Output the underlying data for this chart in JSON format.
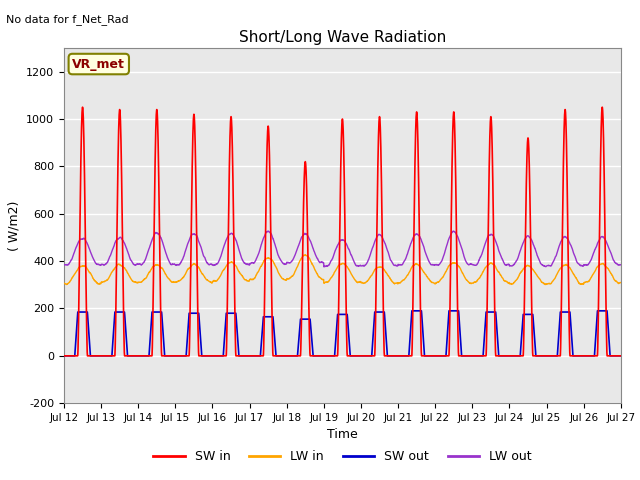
{
  "title": "Short/Long Wave Radiation",
  "xlabel": "Time",
  "ylabel": "( W/m2)",
  "ylim": [
    -200,
    1300
  ],
  "yticks": [
    -200,
    0,
    200,
    400,
    600,
    800,
    1000,
    1200
  ],
  "n_days": 15,
  "x_tick_labels": [
    "Jul 12",
    "Jul 13",
    "Jul 14",
    "Jul 15",
    "Jul 16",
    "Jul 17",
    "Jul 18",
    "Jul 19",
    "Jul 20",
    "Jul 21",
    "Jul 22",
    "Jul 23",
    "Jul 24",
    "Jul 25",
    "Jul 26",
    "Jul 27"
  ],
  "annotation_text": "No data for f_Net_Rad",
  "legend_box_label": "VR_met",
  "colors": {
    "SW_in": "#FF0000",
    "LW_in": "#FFA500",
    "SW_out": "#0000CC",
    "LW_out": "#9933CC"
  },
  "fig_bg_color": "#FFFFFF",
  "plot_bg_color": "#E8E8E8",
  "grid_color": "#FFFFFF",
  "SW_in_amps": [
    1050,
    1040,
    1040,
    1020,
    1010,
    970,
    820,
    1000,
    1010,
    1030,
    1030,
    1010,
    920,
    1040,
    1050
  ],
  "SW_out_amps": [
    185,
    185,
    185,
    180,
    180,
    165,
    155,
    175,
    185,
    190,
    190,
    185,
    175,
    185,
    190
  ],
  "LW_in_night": [
    305,
    310,
    310,
    310,
    315,
    320,
    325,
    310,
    305,
    310,
    310,
    310,
    305,
    305,
    310
  ],
  "LW_in_peak": [
    380,
    385,
    385,
    385,
    395,
    415,
    425,
    390,
    375,
    385,
    395,
    390,
    380,
    385,
    390
  ],
  "LW_out_night": [
    385,
    385,
    385,
    385,
    385,
    390,
    395,
    380,
    380,
    385,
    385,
    385,
    380,
    380,
    385
  ],
  "LW_out_peak": [
    610,
    615,
    655,
    645,
    650,
    660,
    635,
    600,
    640,
    645,
    665,
    640,
    630,
    625,
    620
  ]
}
